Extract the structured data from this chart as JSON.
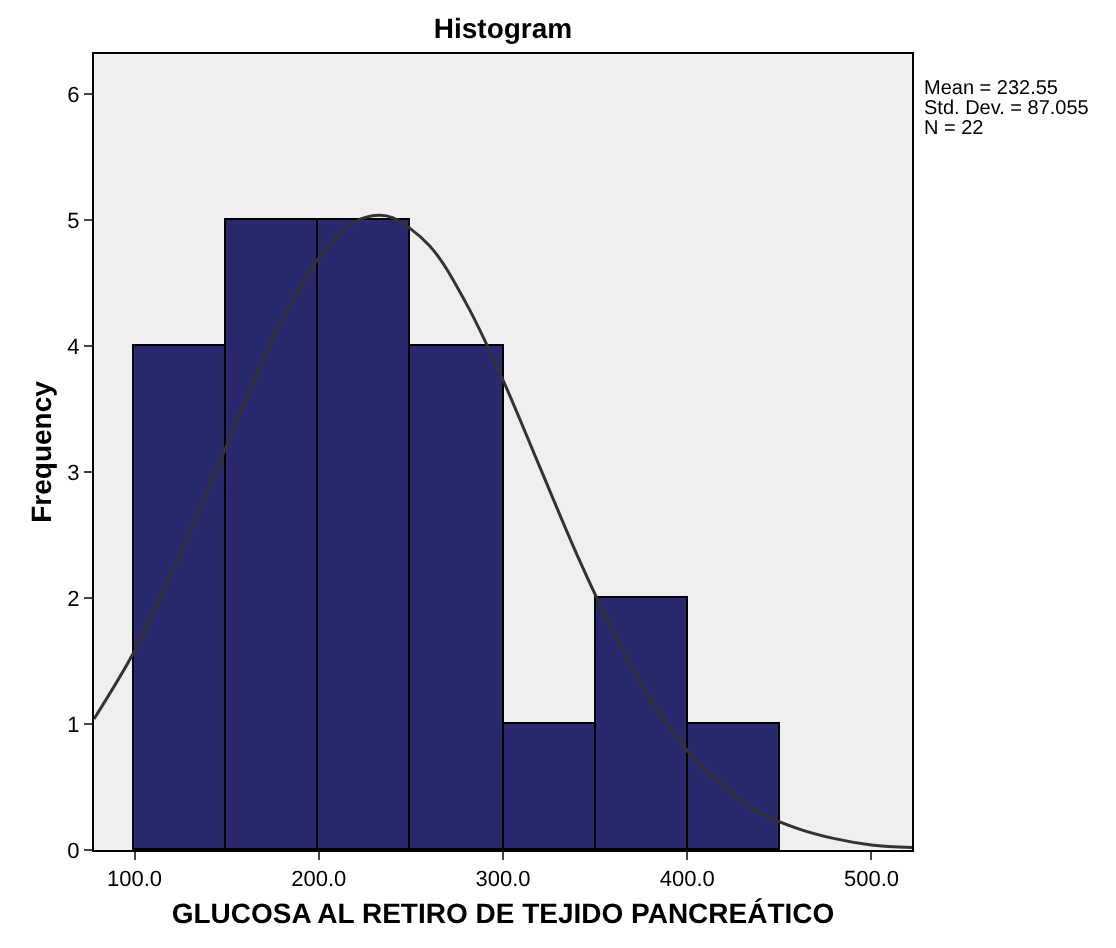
{
  "chart_data": {
    "type": "histogram",
    "title": "Histogram",
    "xlabel": "GLUCOSA AL RETIRO DE TEJIDO PANCREÁTICO",
    "ylabel": "Frequency",
    "bins": [
      100,
      150,
      200,
      250,
      300,
      350,
      400,
      450
    ],
    "values": [
      4,
      5,
      5,
      4,
      1,
      2,
      1
    ],
    "color": "#29296e",
    "series": [
      {
        "type": "line",
        "color": "#333333",
        "x": [
          78,
          100,
          120,
          140,
          160,
          180,
          200,
          220,
          232.55,
          240,
          260,
          280,
          300,
          320,
          340,
          360,
          380,
          400,
          420,
          440,
          460,
          480,
          500,
          522
        ],
        "values": [
          1.04,
          1.58,
          2.19,
          2.86,
          3.56,
          4.2,
          4.7,
          4.99,
          5.04,
          5.02,
          4.8,
          4.34,
          3.73,
          3.04,
          2.35,
          1.73,
          1.2,
          0.79,
          0.5,
          0.29,
          0.17,
          0.09,
          0.04,
          0.02
        ]
      }
    ],
    "xlim": [
      78,
      522
    ],
    "xticks": [
      {
        "value": 100,
        "label": "100.0"
      },
      {
        "value": 200,
        "label": "200.0"
      },
      {
        "value": 300,
        "label": "300.0"
      },
      {
        "value": 400,
        "label": "400.0"
      },
      {
        "value": 500,
        "label": "500.0"
      }
    ],
    "ylim": [
      0,
      6.32
    ],
    "yticks": [
      0,
      1,
      2,
      3,
      4,
      5,
      6
    ],
    "annotations": [
      "Mean = 232.55",
      "Std. Dev. = 87.055",
      "N = 22"
    ]
  }
}
